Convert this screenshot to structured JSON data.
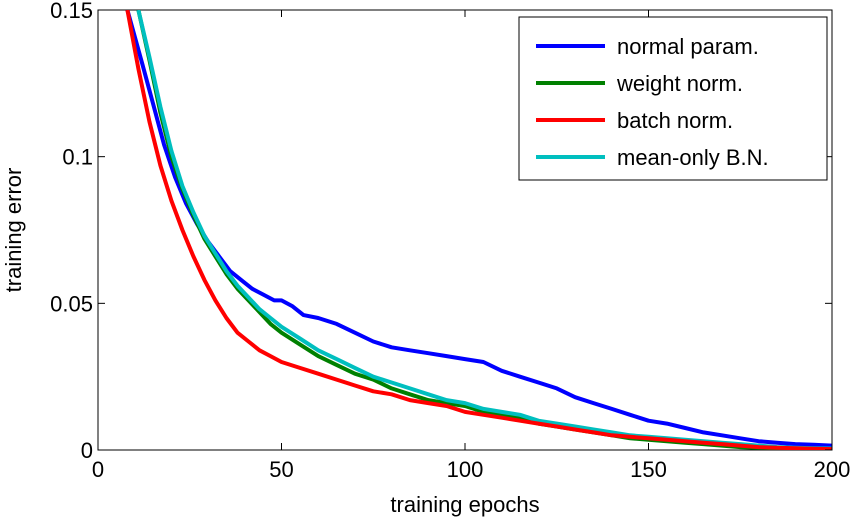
{
  "chart_data": {
    "type": "line",
    "title": "",
    "xlabel": "training epochs",
    "ylabel": "training error",
    "xlim": [
      0,
      200
    ],
    "ylim": [
      0,
      0.15
    ],
    "x_ticks": [
      0,
      50,
      100,
      150,
      200
    ],
    "x_tick_labels": [
      "0",
      "50",
      "100",
      "150",
      "200"
    ],
    "y_ticks": [
      0,
      0.05,
      0.1,
      0.15
    ],
    "y_tick_labels": [
      "0",
      "0.05",
      "0.1",
      "0.15"
    ],
    "grid": false,
    "legend_position": "top-right",
    "series": [
      {
        "name": "normal param.",
        "color": "#0000ff",
        "points": [
          [
            8,
            0.15
          ],
          [
            12,
            0.132
          ],
          [
            15,
            0.118
          ],
          [
            18,
            0.104
          ],
          [
            21,
            0.093
          ],
          [
            24,
            0.084
          ],
          [
            27,
            0.077
          ],
          [
            30,
            0.071
          ],
          [
            33,
            0.066
          ],
          [
            36,
            0.061
          ],
          [
            39,
            0.058
          ],
          [
            42,
            0.055
          ],
          [
            45,
            0.053
          ],
          [
            48,
            0.051
          ],
          [
            50,
            0.051
          ],
          [
            53,
            0.049
          ],
          [
            56,
            0.046
          ],
          [
            60,
            0.045
          ],
          [
            65,
            0.043
          ],
          [
            70,
            0.04
          ],
          [
            75,
            0.037
          ],
          [
            80,
            0.035
          ],
          [
            85,
            0.034
          ],
          [
            90,
            0.033
          ],
          [
            95,
            0.032
          ],
          [
            100,
            0.031
          ],
          [
            105,
            0.03
          ],
          [
            110,
            0.027
          ],
          [
            115,
            0.025
          ],
          [
            120,
            0.023
          ],
          [
            125,
            0.021
          ],
          [
            130,
            0.018
          ],
          [
            135,
            0.016
          ],
          [
            140,
            0.014
          ],
          [
            145,
            0.012
          ],
          [
            150,
            0.01
          ],
          [
            155,
            0.009
          ],
          [
            160,
            0.0075
          ],
          [
            165,
            0.006
          ],
          [
            170,
            0.005
          ],
          [
            175,
            0.004
          ],
          [
            180,
            0.003
          ],
          [
            185,
            0.0025
          ],
          [
            190,
            0.002
          ],
          [
            195,
            0.0018
          ],
          [
            200,
            0.0015
          ]
        ]
      },
      {
        "name": "weight norm.",
        "color": "#008000",
        "points": [
          [
            11,
            0.15
          ],
          [
            14,
            0.133
          ],
          [
            17,
            0.115
          ],
          [
            20,
            0.1
          ],
          [
            23,
            0.089
          ],
          [
            26,
            0.08
          ],
          [
            29,
            0.072
          ],
          [
            32,
            0.066
          ],
          [
            35,
            0.06
          ],
          [
            38,
            0.055
          ],
          [
            41,
            0.051
          ],
          [
            44,
            0.047
          ],
          [
            47,
            0.043
          ],
          [
            50,
            0.04
          ],
          [
            55,
            0.036
          ],
          [
            60,
            0.032
          ],
          [
            65,
            0.029
          ],
          [
            70,
            0.026
          ],
          [
            75,
            0.024
          ],
          [
            80,
            0.021
          ],
          [
            85,
            0.019
          ],
          [
            90,
            0.017
          ],
          [
            95,
            0.016
          ],
          [
            100,
            0.015
          ],
          [
            105,
            0.013
          ],
          [
            110,
            0.012
          ],
          [
            115,
            0.011
          ],
          [
            120,
            0.009
          ],
          [
            125,
            0.008
          ],
          [
            130,
            0.007
          ],
          [
            135,
            0.006
          ],
          [
            140,
            0.005
          ],
          [
            145,
            0.004
          ],
          [
            150,
            0.0035
          ],
          [
            155,
            0.003
          ],
          [
            160,
            0.0025
          ],
          [
            165,
            0.002
          ],
          [
            170,
            0.0015
          ],
          [
            175,
            0.001
          ],
          [
            180,
            0.0008
          ],
          [
            185,
            0.0006
          ],
          [
            190,
            0.0005
          ],
          [
            195,
            0.0003
          ],
          [
            200,
            0.0002
          ]
        ]
      },
      {
        "name": "batch norm.",
        "color": "#ff0000",
        "points": [
          [
            8,
            0.15
          ],
          [
            11,
            0.13
          ],
          [
            14,
            0.112
          ],
          [
            17,
            0.097
          ],
          [
            20,
            0.085
          ],
          [
            23,
            0.075
          ],
          [
            26,
            0.066
          ],
          [
            29,
            0.058
          ],
          [
            32,
            0.051
          ],
          [
            35,
            0.045
          ],
          [
            38,
            0.04
          ],
          [
            41,
            0.037
          ],
          [
            44,
            0.034
          ],
          [
            47,
            0.032
          ],
          [
            50,
            0.03
          ],
          [
            55,
            0.028
          ],
          [
            60,
            0.026
          ],
          [
            65,
            0.024
          ],
          [
            70,
            0.022
          ],
          [
            75,
            0.02
          ],
          [
            80,
            0.019
          ],
          [
            85,
            0.017
          ],
          [
            90,
            0.016
          ],
          [
            95,
            0.015
          ],
          [
            100,
            0.013
          ],
          [
            105,
            0.012
          ],
          [
            110,
            0.011
          ],
          [
            115,
            0.01
          ],
          [
            120,
            0.009
          ],
          [
            125,
            0.008
          ],
          [
            130,
            0.007
          ],
          [
            135,
            0.006
          ],
          [
            140,
            0.005
          ],
          [
            145,
            0.0045
          ],
          [
            150,
            0.004
          ],
          [
            155,
            0.0035
          ],
          [
            160,
            0.003
          ],
          [
            165,
            0.0025
          ],
          [
            170,
            0.002
          ],
          [
            175,
            0.0015
          ],
          [
            180,
            0.001
          ],
          [
            185,
            0.0008
          ],
          [
            190,
            0.0006
          ],
          [
            195,
            0.0004
          ],
          [
            200,
            0.0003
          ]
        ]
      },
      {
        "name": "mean-only B.N.",
        "color": "#00bfbf",
        "points": [
          [
            11,
            0.15
          ],
          [
            14,
            0.134
          ],
          [
            17,
            0.117
          ],
          [
            20,
            0.102
          ],
          [
            23,
            0.09
          ],
          [
            26,
            0.081
          ],
          [
            29,
            0.073
          ],
          [
            32,
            0.067
          ],
          [
            35,
            0.061
          ],
          [
            38,
            0.056
          ],
          [
            41,
            0.052
          ],
          [
            44,
            0.048
          ],
          [
            47,
            0.045
          ],
          [
            50,
            0.042
          ],
          [
            55,
            0.038
          ],
          [
            60,
            0.034
          ],
          [
            65,
            0.031
          ],
          [
            70,
            0.028
          ],
          [
            75,
            0.025
          ],
          [
            80,
            0.023
          ],
          [
            85,
            0.021
          ],
          [
            90,
            0.019
          ],
          [
            95,
            0.017
          ],
          [
            100,
            0.016
          ],
          [
            105,
            0.014
          ],
          [
            110,
            0.013
          ],
          [
            115,
            0.012
          ],
          [
            120,
            0.01
          ],
          [
            125,
            0.009
          ],
          [
            130,
            0.008
          ],
          [
            135,
            0.007
          ],
          [
            140,
            0.006
          ],
          [
            145,
            0.005
          ],
          [
            150,
            0.0045
          ],
          [
            155,
            0.004
          ],
          [
            160,
            0.0035
          ],
          [
            165,
            0.003
          ],
          [
            170,
            0.0025
          ],
          [
            175,
            0.002
          ],
          [
            180,
            0.0015
          ],
          [
            185,
            0.001
          ],
          [
            190,
            0.0008
          ],
          [
            195,
            0.0006
          ],
          [
            200,
            0.0005
          ]
        ]
      }
    ]
  }
}
